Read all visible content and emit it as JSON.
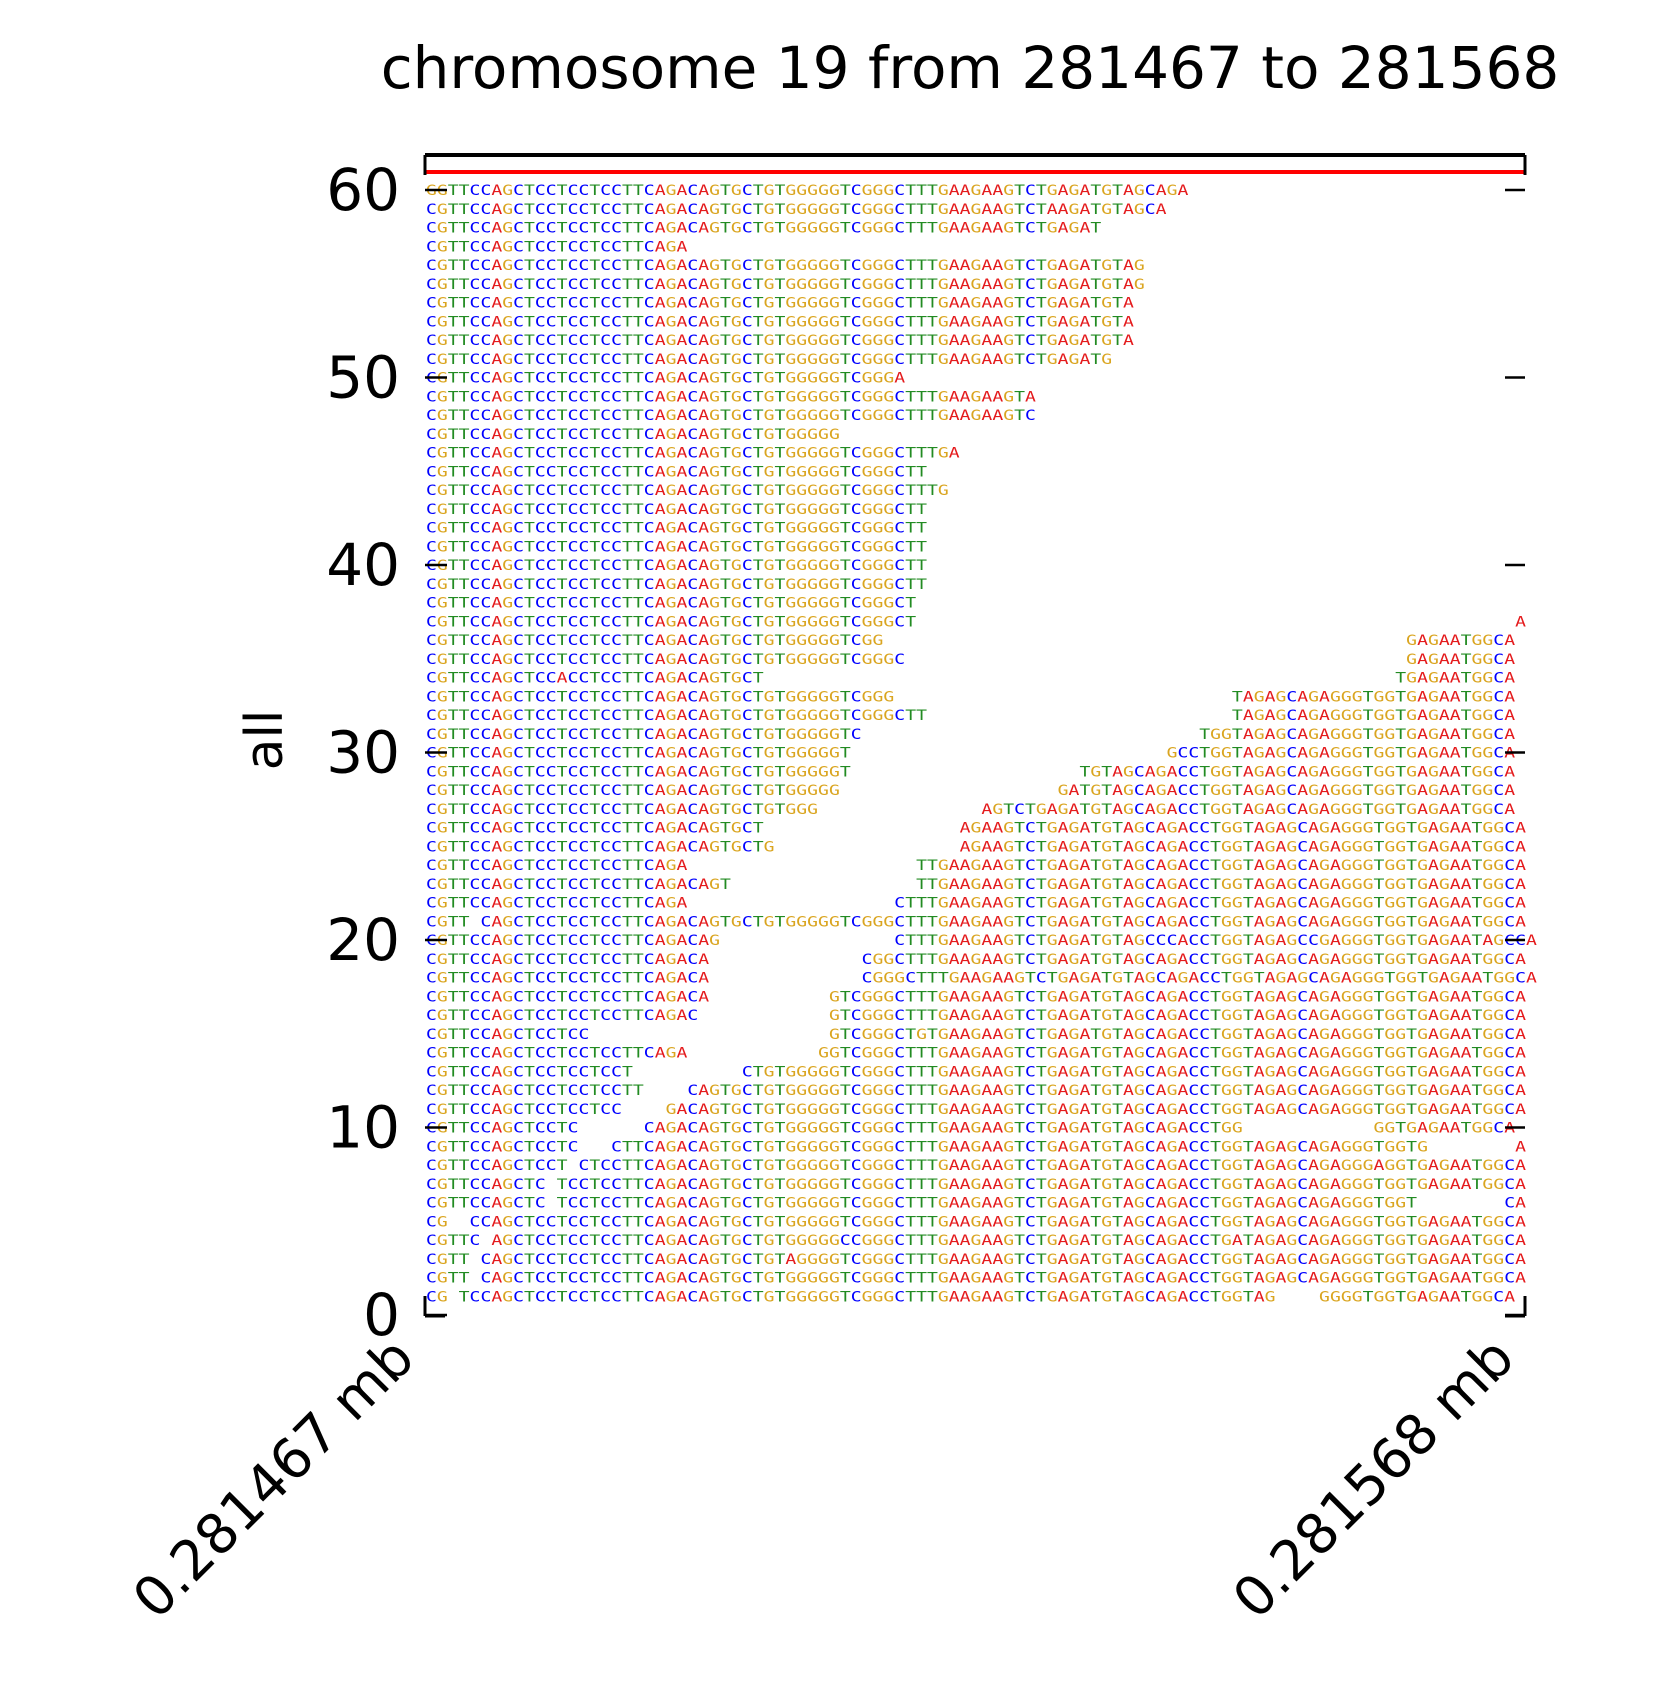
{
  "chart_data": {
    "type": "table",
    "title": "chromosome 19 from 281467 to 281568",
    "ylabel": "all",
    "xlabel": "",
    "xlim": [
      281467,
      281568
    ],
    "ylim": [
      0,
      60
    ],
    "x_tick_labels": [
      "0.281467 mb",
      "0.281568 mb"
    ],
    "y_ticks": [
      0,
      10,
      20,
      30,
      40,
      50,
      60
    ],
    "y_tick_labels": [
      "0",
      "10",
      "20",
      "30",
      "40",
      "50",
      "60"
    ],
    "coverage_color": "#ff0000",
    "base_colors": {
      "A": "#e41a1c",
      "C": "#0000ff",
      "G": "#daa520",
      "T": "#228b22"
    },
    "reads": [
      {
        "row": 60,
        "segments": [
          {
            "start": 281467,
            "seq": "GGTTCCAGCTCCTCCTCCTTCAGACAGTGCTGTGGGGGTCGGGCTTTGAAGAAGTCTGAGATGTAGCAGA"
          }
        ]
      },
      {
        "row": 59,
        "segments": [
          {
            "start": 281467,
            "seq": "CGTTCCAGCTCCTCCTCCTTCAGACAGTGCTGTGGGGGTCGGGCTTTGAAGAAGTCTAAGATGTAGCA"
          }
        ]
      },
      {
        "row": 58,
        "segments": [
          {
            "start": 281467,
            "seq": "CGTTCCAGCTCCTCCTCCTTCAGACAGTGCTGTGGGGGTCGGGCTTTGAAGAAGTCTGAGAT"
          }
        ]
      },
      {
        "row": 57,
        "segments": [
          {
            "start": 281467,
            "seq": "CGTTCCAGCTCCTCCTCCTTCAGA"
          }
        ]
      },
      {
        "row": 56,
        "segments": [
          {
            "start": 281467,
            "seq": "CGTTCCAGCTCCTCCTCCTTCAGACAGTGCTGTGGGGGTCGGGCTTTGAAGAAGTCTGAGATGTAG"
          }
        ]
      },
      {
        "row": 55,
        "segments": [
          {
            "start": 281467,
            "seq": "CGTTCCAGCTCCTCCTCCTTCAGACAGTGCTGTGGGGGTCGGGCTTTGAAGAAGTCTGAGATGTAG"
          }
        ]
      },
      {
        "row": 54,
        "segments": [
          {
            "start": 281467,
            "seq": "CGTTCCAGCTCCTCCTCCTTCAGACAGTGCTGTGGGGGTCGGGCTTTGAAGAAGTCTGAGATGTA"
          }
        ]
      },
      {
        "row": 53,
        "segments": [
          {
            "start": 281467,
            "seq": "CGTTCCAGCTCCTCCTCCTTCAGACAGTGCTGTGGGGGTCGGGCTTTGAAGAAGTCTGAGATGTA"
          }
        ]
      },
      {
        "row": 52,
        "segments": [
          {
            "start": 281467,
            "seq": "CGTTCCAGCTCCTCCTCCTTCAGACAGTGCTGTGGGGGTCGGGCTTTGAAGAAGTCTGAGATGTA"
          }
        ]
      },
      {
        "row": 51,
        "segments": [
          {
            "start": 281467,
            "seq": "CGTTCCAGCTCCTCCTCCTTCAGACAGTGCTGTGGGGGTCGGGCTTTGAAGAAGTCTGAGATG"
          }
        ]
      },
      {
        "row": 50,
        "segments": [
          {
            "start": 281467,
            "seq": "CGTTCCAGCTCCTCCTCCTTCAGACAGTGCTGTGGGGGTCGGGA"
          }
        ]
      },
      {
        "row": 49,
        "segments": [
          {
            "start": 281467,
            "seq": "CGTTCCAGCTCCTCCTCCTTCAGACAGTGCTGTGGGGGTCGGGCTTTGAAGAAGTA"
          }
        ]
      },
      {
        "row": 48,
        "segments": [
          {
            "start": 281467,
            "seq": "CGTTCCAGCTCCTCCTCCTTCAGACAGTGCTGTGGGGGTCGGGCTTTGAAGAAGTC"
          }
        ]
      },
      {
        "row": 47,
        "segments": [
          {
            "start": 281467,
            "seq": "CGTTCCAGCTCCTCCTCCTTCAGACAGTGCTGTGGGGG"
          }
        ]
      },
      {
        "row": 46,
        "segments": [
          {
            "start": 281467,
            "seq": "CGTTCCAGCTCCTCCTCCTTCAGACAGTGCTGTGGGGGTCGGGCTTTGA"
          }
        ]
      },
      {
        "row": 45,
        "segments": [
          {
            "start": 281467,
            "seq": "CGTTCCAGCTCCTCCTCCTTCAGACAGTGCTGTGGGGGTCGGGCTT"
          }
        ]
      },
      {
        "row": 44,
        "segments": [
          {
            "start": 281467,
            "seq": "CGTTCCAGCTCCTCCTCCTTCAGACAGTGCTGTGGGGGTCGGGCTTTG"
          }
        ]
      },
      {
        "row": 43,
        "segments": [
          {
            "start": 281467,
            "seq": "CGTTCCAGCTCCTCCTCCTTCAGACAGTGCTGTGGGGGTCGGGCTT"
          }
        ]
      },
      {
        "row": 42,
        "segments": [
          {
            "start": 281467,
            "seq": "CGTTCCAGCTCCTCCTCCTTCAGACAGTGCTGTGGGGGTCGGGCTT"
          }
        ]
      },
      {
        "row": 41,
        "segments": [
          {
            "start": 281467,
            "seq": "CGTTCCAGCTCCTCCTCCTTCAGACAGTGCTGTGGGGGTCGGGCTT"
          }
        ]
      },
      {
        "row": 40,
        "segments": [
          {
            "start": 281467,
            "seq": "CGTTCCAGCTCCTCCTCCTTCAGACAGTGCTGTGGGGGTCGGGCTT"
          }
        ]
      },
      {
        "row": 39,
        "segments": [
          {
            "start": 281467,
            "seq": "CGTTCCAGCTCCTCCTCCTTCAGACAGTGCTGTGGGGGTCGGGCTT"
          }
        ]
      },
      {
        "row": 38,
        "segments": [
          {
            "start": 281467,
            "seq": "CGTTCCAGCTCCTCCTCCTTCAGACAGTGCTGTGGGGGTCGGGCT"
          }
        ]
      },
      {
        "row": 37,
        "segments": [
          {
            "start": 281467,
            "seq": "CGTTCCAGCTCCTCCTCCTTCAGACAGTGCTGTGGGGGTCGGGCT"
          },
          {
            "start": 281567,
            "seq": "A"
          }
        ]
      },
      {
        "row": 36,
        "segments": [
          {
            "start": 281467,
            "seq": "CGTTCCAGCTCCTCCTCCTTCAGACAGTGCTGTGGGGGTCGG"
          },
          {
            "start": 281557,
            "seq": "GAGAATGGCA"
          }
        ]
      },
      {
        "row": 35,
        "segments": [
          {
            "start": 281467,
            "seq": "CGTTCCAGCTCCTCCTCCTTCAGACAGTGCTGTGGGGGTCGGGC"
          },
          {
            "start": 281557,
            "seq": "GAGAATGGCA"
          }
        ]
      },
      {
        "row": 34,
        "segments": [
          {
            "start": 281467,
            "seq": "CGTTCCAGCTCCACCTCCTTCAGACAGTGCT"
          },
          {
            "start": 281556,
            "seq": "TGAGAATGGCA"
          }
        ]
      },
      {
        "row": 33,
        "segments": [
          {
            "start": 281467,
            "seq": "CGTTCCAGCTCCTCCTCCTTCAGACAGTGCTGTGGGGGTCGGG"
          },
          {
            "start": 281541,
            "seq": "TAGAGCAGAGGGTGGTGAGAATGGCA"
          }
        ]
      },
      {
        "row": 32,
        "segments": [
          {
            "start": 281467,
            "seq": "CGTTCCAGCTCCTCCTCCTTCAGACAGTGCTGTGGGGGTCGGGCTT"
          },
          {
            "start": 281541,
            "seq": "TAGAGCAGAGGGTGGTGAGAATGGCA"
          }
        ]
      },
      {
        "row": 31,
        "segments": [
          {
            "start": 281467,
            "seq": "CGTTCCAGCTCCTCCTCCTTCAGACAGTGCTGTGGGGGTC"
          },
          {
            "start": 281538,
            "seq": "TGGTAGAGCAGAGGGTGGTGAGAATGGCA"
          }
        ]
      },
      {
        "row": 30,
        "segments": [
          {
            "start": 281467,
            "seq": "CGTTCCAGCTCCTCCTCCTTCAGACAGTGCTGTGGGGGT"
          },
          {
            "start": 281535,
            "seq": "GCCTGGTAGAGCAGAGGGTGGTGAGAATGGCA"
          }
        ]
      },
      {
        "row": 29,
        "segments": [
          {
            "start": 281467,
            "seq": "CGTTCCAGCTCCTCCTCCTTCAGACAGTGCTGTGGGGGT"
          },
          {
            "start": 281527,
            "seq": "TGTAGCAGACCTGGTAGAGCAGAGGGTGGTGAGAATGGCA"
          }
        ]
      },
      {
        "row": 28,
        "segments": [
          {
            "start": 281467,
            "seq": "CGTTCCAGCTCCTCCTCCTTCAGACAGTGCTGTGGGGG"
          },
          {
            "start": 281525,
            "seq": "GATGTAGCAGACCTGGTAGAGCAGAGGGTGGTGAGAATGGCA"
          }
        ]
      },
      {
        "row": 27,
        "segments": [
          {
            "start": 281467,
            "seq": "CGTTCCAGCTCCTCCTCCTTCAGACAGTGCTGTGGG"
          },
          {
            "start": 281518,
            "seq": "AGTCTGAGATGTAGCAGACCTGGTAGAGCAGAGGGTGGTGAGAATGGCA"
          }
        ]
      },
      {
        "row": 26,
        "segments": [
          {
            "start": 281467,
            "seq": "CGTTCCAGCTCCTCCTCCTTCAGACAGTGCT"
          },
          {
            "start": 281516,
            "seq": "AGAAGTCTGAGATGTAGCAGACCTGGTAGAGCAGAGGGTGGTGAGAATGGCA"
          }
        ]
      },
      {
        "row": 25,
        "segments": [
          {
            "start": 281467,
            "seq": "CGTTCCAGCTCCTCCTCCTTCAGACAGTGCTG"
          },
          {
            "start": 281516,
            "seq": "AGAAGTCTGAGATGTAGCAGACCTGGTAGAGCAGAGGGTGGTGAGAATGGCA"
          }
        ]
      },
      {
        "row": 24,
        "segments": [
          {
            "start": 281467,
            "seq": "CGTTCCAGCTCCTCCTCCTTCAGA"
          },
          {
            "start": 281512,
            "seq": "TTGAAGAAGTCTGAGATGTAGCAGACCTGGTAGAGCAGAGGGTGGTGAGAATGGCA"
          }
        ]
      },
      {
        "row": 23,
        "segments": [
          {
            "start": 281467,
            "seq": "CGTTCCAGCTCCTCCTCCTTCAGACAGT"
          },
          {
            "start": 281512,
            "seq": "TTGAAGAAGTCTGAGATGTAGCAGACCTGGTAGAGCAGAGGGTGGTGAGAATGGCA"
          }
        ]
      },
      {
        "row": 22,
        "segments": [
          {
            "start": 281467,
            "seq": "CGTTCCAGCTCCTCCTCCTTCAGA"
          },
          {
            "start": 281510,
            "seq": "CTTTGAAGAAGTCTGAGATGTAGCAGACCTGGTAGAGCAGAGGGTGGTGAGAATGGCA"
          }
        ]
      },
      {
        "row": 21,
        "segments": [
          {
            "start": 281467,
            "seq": "CGTT CAGCTCCTCCTCCTTCAGACAGTGCTGTGGGGGTCGGGCTTTGAAGAAGTCTGAGATGTAGCAGACCTGGTAGAGCAGAGGGTGGTGAGAATGGCA"
          }
        ]
      },
      {
        "row": 20,
        "segments": [
          {
            "start": 281467,
            "seq": "CGTTCCAGCTCCTCCTCCTTCAGACAG"
          },
          {
            "start": 281510,
            "seq": "CTTTGAAGAAGTCTGAGATGTAGCCCACCTGGTAGAGCCGAGGGTGGTGAGAATAGCCA"
          }
        ]
      },
      {
        "row": 19,
        "segments": [
          {
            "start": 281467,
            "seq": "CGTTCCAGCTCCTCCTCCTTCAGACA"
          },
          {
            "start": 281507,
            "seq": "CGGCTTTGAAGAAGTCTGAGATGTAGCAGACCTGGTAGAGCAGAGGGTGGTGAGAATGGCA"
          }
        ]
      },
      {
        "row": 18,
        "segments": [
          {
            "start": 281467,
            "seq": "CGTTCCAGCTCCTCCTCCTTCAGACA"
          },
          {
            "start": 281507,
            "seq": "CGGGCTTTGAAGAAGTCTGAGATGTAGCAGACCTGGTAGAGCAGAGGGTGGTGAGAATGGCA"
          }
        ]
      },
      {
        "row": 17,
        "segments": [
          {
            "start": 281467,
            "seq": "CGTTCCAGCTCCTCCTCCTTCAGACA"
          },
          {
            "start": 281504,
            "seq": "GTCGGGCTTTGAAGAAGTCTGAGATGTAGCAGACCTGGTAGAGCAGAGGGTGGTGAGAATGGCA"
          }
        ]
      },
      {
        "row": 16,
        "segments": [
          {
            "start": 281467,
            "seq": "CGTTCCAGCTCCTCCTCCTTCAGAC"
          },
          {
            "start": 281504,
            "seq": "GTCGGGCTTTGAAGAAGTCTGAGATGTAGCAGACCTGGTAGAGCAGAGGGTGGTGAGAATGGCA"
          }
        ]
      },
      {
        "row": 15,
        "segments": [
          {
            "start": 281467,
            "seq": "CGTTCCAGCTCCTCC"
          },
          {
            "start": 281504,
            "seq": "GTCGGGCTGTGAAGAAGTCTGAGATGTAGCAGACCTGGTAGAGCAGAGGGTGGTGAGAATGGCA"
          }
        ]
      },
      {
        "row": 14,
        "segments": [
          {
            "start": 281467,
            "seq": "CGTTCCAGCTCCTCCTCCTTCAGA"
          },
          {
            "start": 281503,
            "seq": "GGTCGGGCTTTGAAGAAGTCTGAGATGTAGCAGACCTGGTAGAGCAGAGGGTGGTGAGAATGGCA"
          }
        ]
      },
      {
        "row": 13,
        "segments": [
          {
            "start": 281467,
            "seq": "CGTTCCAGCTCCTCCTCCT"
          },
          {
            "start": 281496,
            "seq": "CTGTGGGGGTCGGGCTTTGAAGAAGTCTGAGATGTAGCAGACCTGGTAGAGCAGAGGGTGGTGAGAATGGCA"
          }
        ]
      },
      {
        "row": 12,
        "segments": [
          {
            "start": 281467,
            "seq": "CGTTCCAGCTCCTCCTCCTT"
          },
          {
            "start": 281491,
            "seq": "CAGTGCTGTGGGGGTCGGGCTTTGAAGAAGTCTGAGATGTAGCAGACCTGGTAGAGCAGAGGGTGGTGAGAATGGCA"
          }
        ]
      },
      {
        "row": 11,
        "segments": [
          {
            "start": 281467,
            "seq": "CGTTCCAGCTCCTCCTCC"
          },
          {
            "start": 281489,
            "seq": "GACAGTGCTGTGGGGGTCGGGCTTTGAAGAAGTCTGAGATGTAGCAGACCTGGTAGAGCAGAGGGTGGTGAGAATGGCA"
          }
        ]
      },
      {
        "row": 10,
        "segments": [
          {
            "start": 281467,
            "seq": "CGTTCCAGCTCCTC"
          },
          {
            "start": 281487,
            "seq": "CAGACAGTGCTGTGGGGGTCGGGCTTTGAAGAAGTCTGAGATGTAGCAGACCTGG"
          },
          {
            "start": 281554,
            "seq": "GGTGAGAATGGCA"
          }
        ]
      },
      {
        "row": 9,
        "segments": [
          {
            "start": 281467,
            "seq": "CGTTCCAGCTCCTC"
          },
          {
            "start": 281484,
            "seq": "CTTCAGACAGTGCTGTGGGGGTCGGGCTTTGAAGAAGTCTGAGATGTAGCAGACCTGGTAGAGCAGAGGGTGGTG"
          },
          {
            "start": 281567,
            "seq": "A"
          }
        ]
      },
      {
        "row": 8,
        "segments": [
          {
            "start": 281467,
            "seq": "CGTTCCAGCTCCT CTCCTTCAGACAGTGCTGTGGGGGTCGGGCTTTGAAGAAGTCTGAGATGTAGCAGACCTGGTAGAGCAGAGGGAGGTGAGAATGGCA"
          }
        ]
      },
      {
        "row": 7,
        "segments": [
          {
            "start": 281467,
            "seq": "CGTTCCAGCTC TCCTCCTTCAGACAGTGCTGTGGGGGTCGGGCTTTGAAGAAGTCTGAGATGTAGCAGACCTGGTAGAGCAGAGGGTGGTGAGAATGGCA"
          }
        ]
      },
      {
        "row": 6,
        "segments": [
          {
            "start": 281467,
            "seq": "CGTTCCAGCTC TCCTCCTTCAGACAGTGCTGTGGGGGTCGGGCTTTGAAGAAGTCTGAGATGTAGCAGACCTGGTAGAGCAGAGGGTGGT"
          },
          {
            "start": 281566,
            "seq": "CA"
          }
        ]
      },
      {
        "row": 5,
        "segments": [
          {
            "start": 281467,
            "seq": "CG  CCAGCTCCTCCTCCTTCAGACAGTGCTGTGGGGGTCGGGCTTTGAAGAAGTCTGAGATGTAGCAGACCTGGTAGAGCAGAGGGTGGTGAGAATGGCA"
          }
        ]
      },
      {
        "row": 4,
        "segments": [
          {
            "start": 281467,
            "seq": "CGTTC AGCTCCTCCTCCTTCAGACAGTGCTGTGGGGGCCGGGCTTTGAAGAAGTCTGAGATGTAGCAGACCTGATAGAGCAGAGGGTGGTGAGAATGGCA"
          }
        ]
      },
      {
        "row": 3,
        "segments": [
          {
            "start": 281467,
            "seq": "CGTT CAGCTCCTCCTCCTTCAGACAGTGCTGTAGGGGTCGGGCTTTGAAGAAGTCTGAGATGTAGCAGACCTGGTAGAGCAGAGGGTGGTGAGAATGGCA"
          }
        ]
      },
      {
        "row": 2,
        "segments": [
          {
            "start": 281467,
            "seq": "CGTT CAGCTCCTCCTCCTTCAGACAGTGCTGTGGGGGTCGGGCTTTGAAGAAGTCTGAGATGTAGCAGACCTGGTAGAGCAGAGGGTGGTGAGAATGGCA"
          }
        ]
      },
      {
        "row": 1,
        "segments": [
          {
            "start": 281467,
            "seq": "CG TCCAGCTCCTCCTCCTTCAGACAGTGCTGTGGGGGTCGGGCTTTGAAGAAGTCTGAGATGTAGCAGACCTGGTAG"
          },
          {
            "start": 281549,
            "seq": "GGGGTGGTGAGAATGGCA"
          }
        ]
      }
    ]
  }
}
